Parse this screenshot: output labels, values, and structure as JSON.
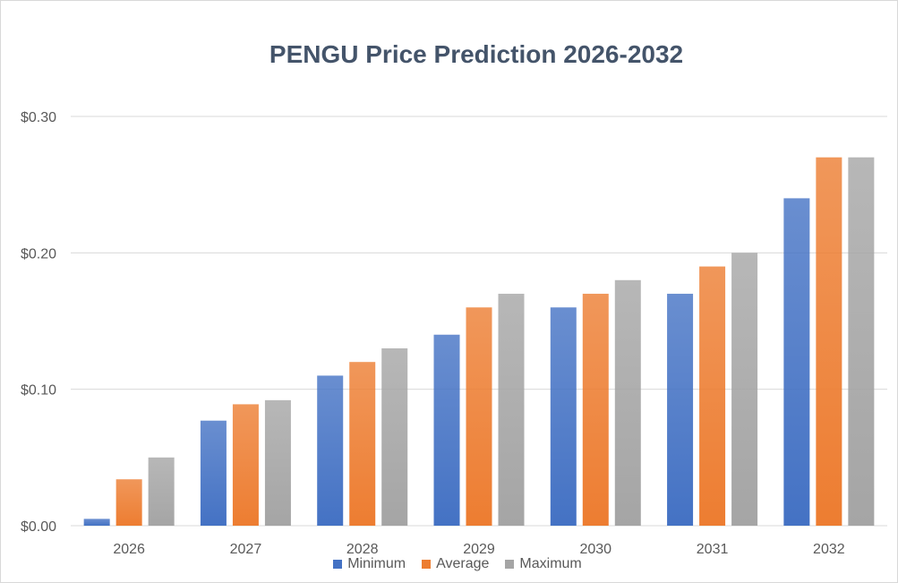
{
  "chart_data": {
    "type": "bar",
    "title": "PENGU Price Prediction 2026-2032",
    "xlabel": "",
    "ylabel": "",
    "categories": [
      "2026",
      "2027",
      "2028",
      "2029",
      "2030",
      "2031",
      "2032"
    ],
    "series": [
      {
        "name": "Minimum",
        "color": "#4472c4",
        "values": [
          0.005,
          0.077,
          0.11,
          0.14,
          0.16,
          0.17,
          0.24
        ]
      },
      {
        "name": "Average",
        "color": "#ed7d31",
        "values": [
          0.034,
          0.089,
          0.12,
          0.16,
          0.17,
          0.19,
          0.27
        ]
      },
      {
        "name": "Maximum",
        "color": "#a5a5a5",
        "values": [
          0.05,
          0.092,
          0.13,
          0.17,
          0.18,
          0.2,
          0.27
        ]
      }
    ],
    "ylim": [
      0,
      0.3
    ],
    "yticks": [
      "$0.00",
      "$0.10",
      "$0.20",
      "$0.30"
    ],
    "grid": true,
    "legend_position": "bottom"
  }
}
